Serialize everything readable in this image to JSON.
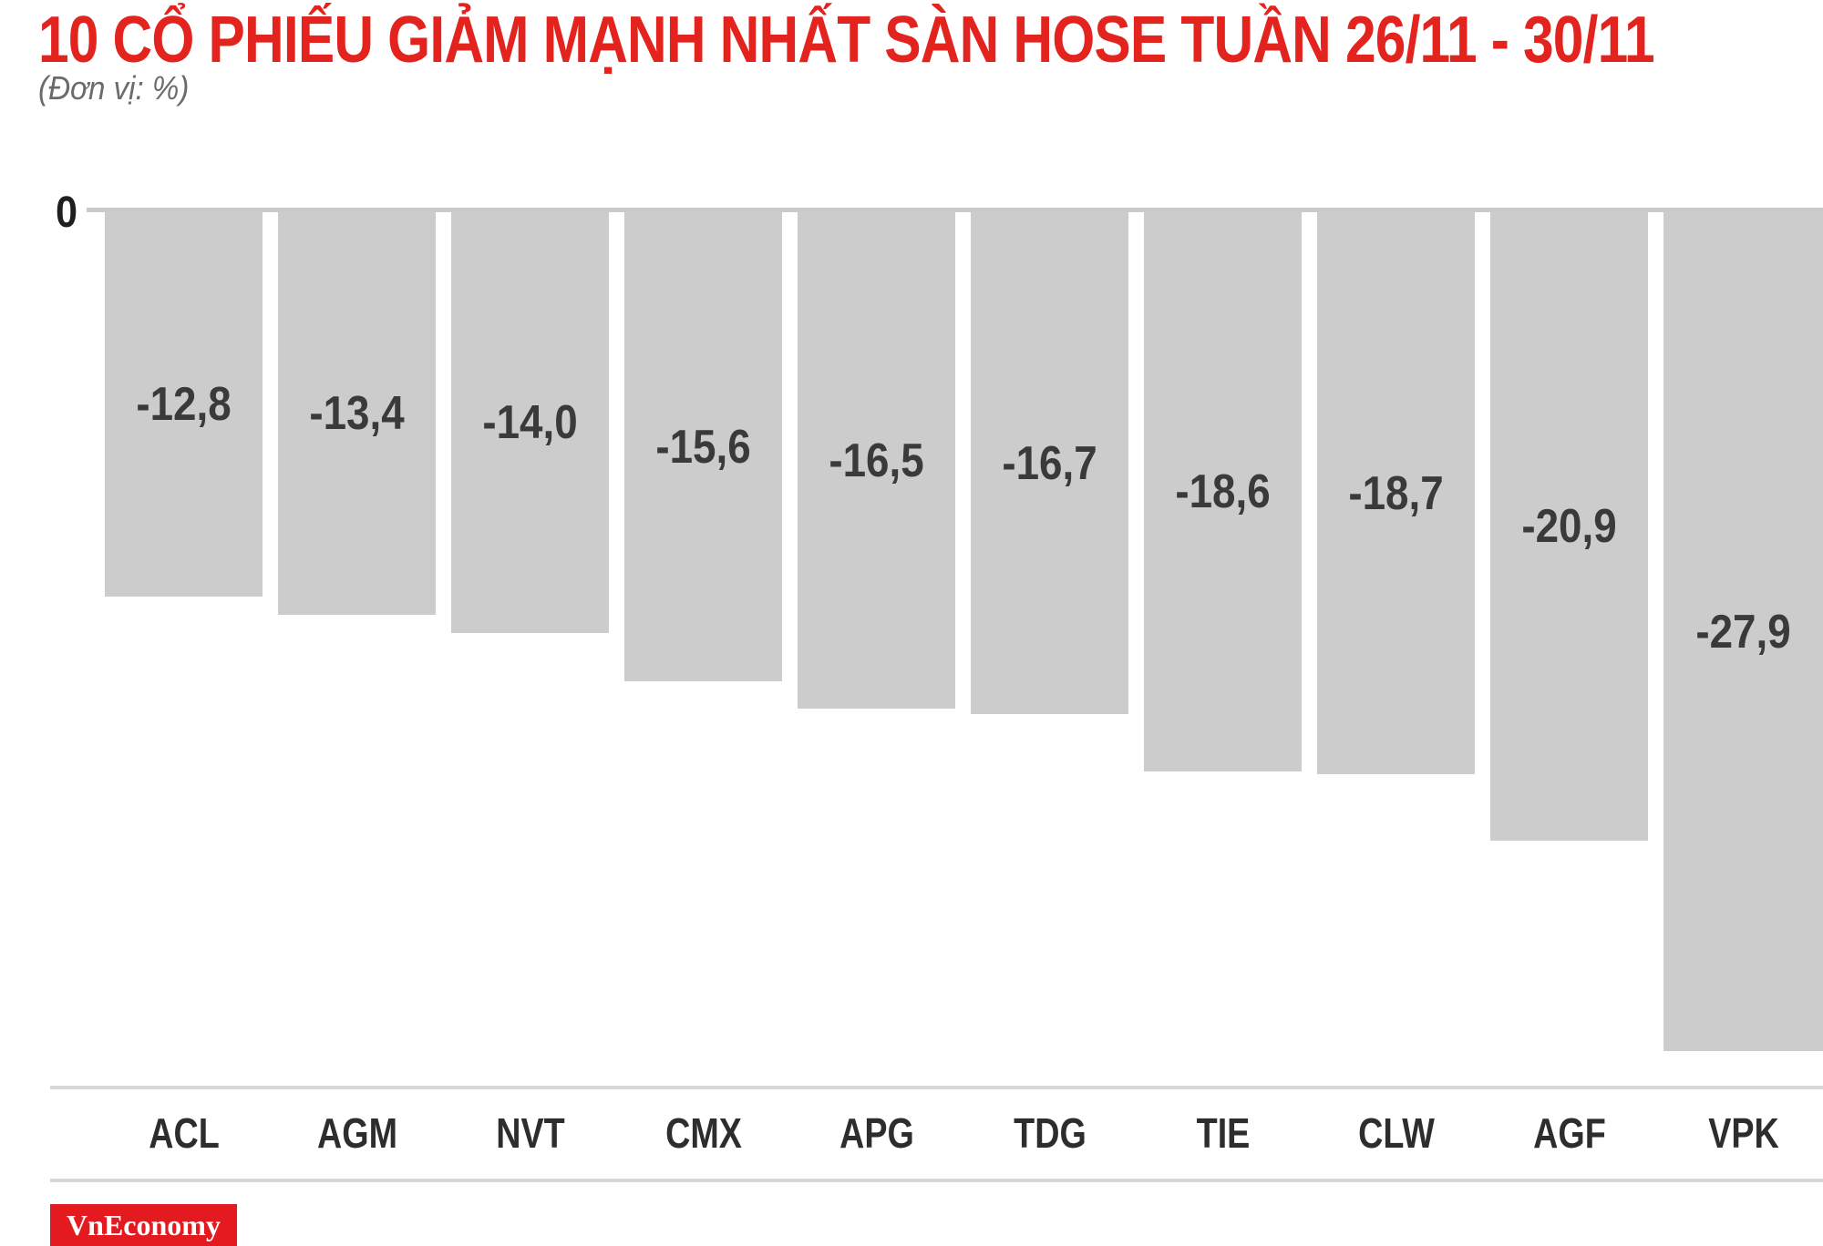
{
  "title": "10 CỔ PHIẾU GIẢM MẠNH NHẤT SÀN HOSE TUẦN 26/11 - 30/11",
  "subtitle": "(Đơn vị: %)",
  "axis": {
    "zero_label": "0"
  },
  "chart_data": {
    "type": "bar",
    "orientation": "vertical-negative",
    "categories": [
      "ACL",
      "AGM",
      "NVT",
      "CMX",
      "APG",
      "TDG",
      "TIE",
      "CLW",
      "AGF",
      "VPK"
    ],
    "values": [
      -12.8,
      -13.4,
      -14.0,
      -15.6,
      -16.5,
      -16.7,
      -18.6,
      -18.7,
      -20.9,
      -27.9
    ],
    "value_labels": [
      "-12,8",
      "-13,4",
      "-14,0",
      "-15,6",
      "-16,5",
      "-16,7",
      "-18,6",
      "-18,7",
      "-20,9",
      "-27,9"
    ],
    "title": "10 CỔ PHIẾU GIẢM MẠNH NHẤT SÀN HOSE TUẦN 26/11 - 30/11",
    "unit": "%",
    "xlabel": "",
    "ylabel": "(Đơn vị: %)",
    "ylim": [
      -30,
      0
    ],
    "grid": false,
    "legend": "none",
    "value_labels_position": "inside-middle"
  },
  "footer": {
    "brand": "VnEconomy"
  },
  "colors": {
    "title_red": "#e2231e",
    "bar_gray": "#cccccc",
    "value_text": "#3a3a3a",
    "tick_text": "#2d2d2d",
    "axis_line": "#cbcbcb",
    "rule_gray": "#d8d8d8",
    "brand_bg": "#e31b20",
    "brand_text": "#ffffff",
    "subtitle_gray": "#6b6b6b"
  }
}
